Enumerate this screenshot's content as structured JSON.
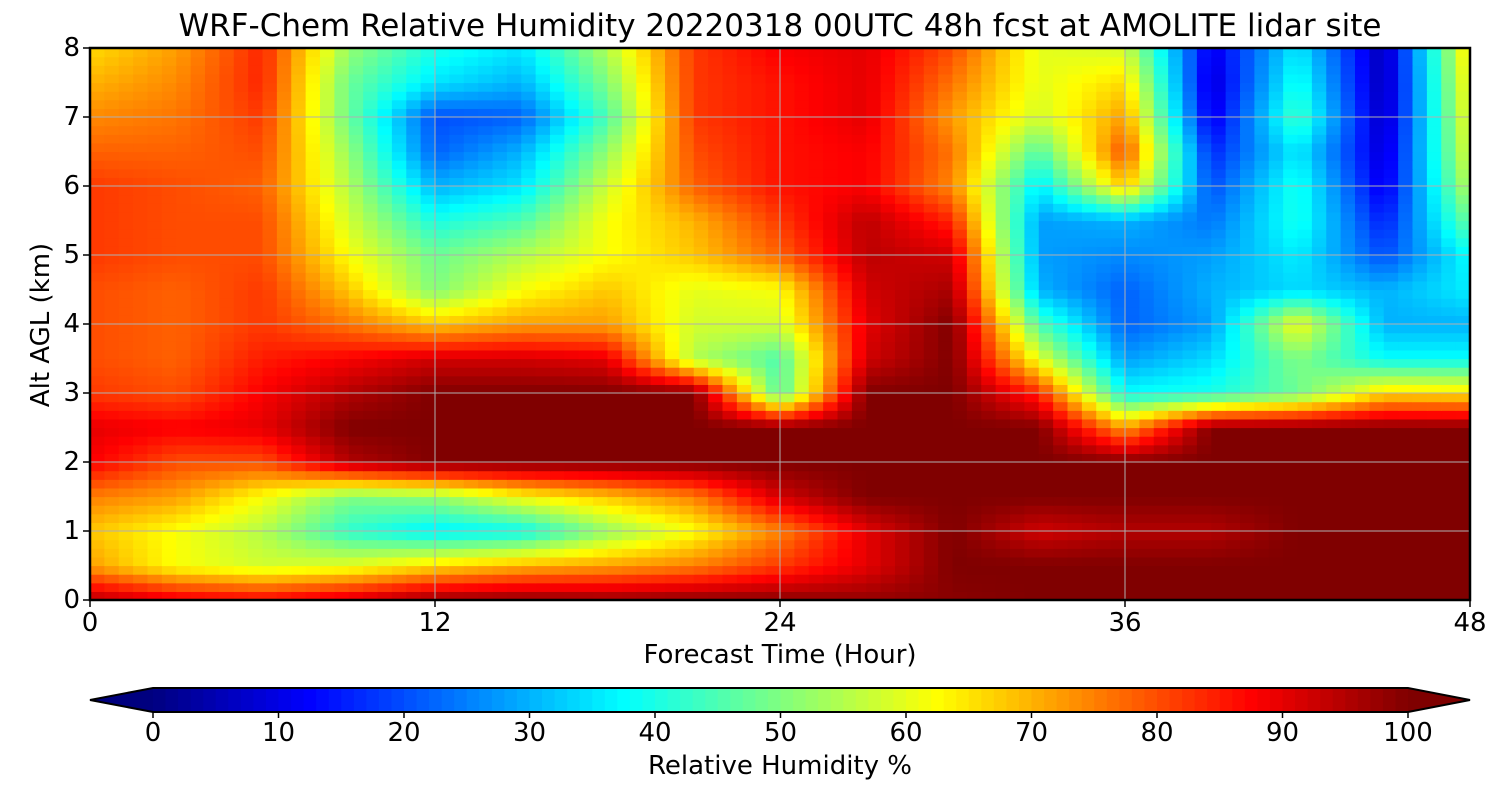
{
  "chart_data": {
    "type": "heatmap",
    "title": "WRF-Chem Relative Humidity 20220318 00UTC 48h fcst at AMOLITE lidar site",
    "xlabel": "Forecast Time (Hour)",
    "ylabel": "Alt AGL (km)",
    "xlim": [
      0,
      48
    ],
    "ylim": [
      0,
      8
    ],
    "xticks": [
      "0",
      "12",
      "24",
      "36",
      "48"
    ],
    "yticks": [
      "0",
      "1",
      "2",
      "3",
      "4",
      "5",
      "6",
      "7",
      "8"
    ],
    "grid": true,
    "colormap": "jet",
    "colorbar": {
      "label": "Relative Humidity %",
      "range": [
        0,
        100
      ],
      "ticks": [
        "0",
        "10",
        "20",
        "30",
        "40",
        "50",
        "60",
        "70",
        "80",
        "90",
        "100"
      ],
      "extend": "both",
      "under_color": "#00007f",
      "over_color": "#7f0000"
    },
    "x": [
      0,
      3,
      6,
      9,
      12,
      15,
      18,
      21,
      24,
      27,
      30,
      33,
      36,
      39,
      42,
      45,
      48
    ],
    "y": [
      0,
      0.5,
      1,
      1.5,
      2,
      2.5,
      3,
      3.5,
      4,
      4.5,
      5,
      5.5,
      6,
      6.5,
      7,
      7.5,
      8
    ],
    "z": [
      [
        95,
        90,
        88,
        92,
        98,
        99,
        98,
        99,
        99,
        98,
        99,
        100,
        100,
        100,
        100,
        100,
        100
      ],
      [
        72,
        62,
        58,
        60,
        66,
        70,
        72,
        75,
        82,
        90,
        100,
        100,
        100,
        100,
        100,
        100,
        100
      ],
      [
        68,
        62,
        55,
        42,
        36,
        38,
        52,
        62,
        75,
        90,
        100,
        92,
        95,
        95,
        100,
        100,
        100
      ],
      [
        75,
        72,
        62,
        50,
        52,
        62,
        68,
        75,
        92,
        100,
        100,
        100,
        100,
        100,
        100,
        100,
        100
      ],
      [
        88,
        80,
        80,
        95,
        100,
        100,
        100,
        100,
        100,
        100,
        100,
        100,
        100,
        100,
        100,
        100,
        100
      ],
      [
        90,
        88,
        90,
        100,
        100,
        100,
        100,
        100,
        100,
        100,
        100,
        100,
        72,
        100,
        100,
        100,
        100
      ],
      [
        82,
        80,
        88,
        95,
        100,
        100,
        100,
        100,
        45,
        100,
        100,
        84,
        38,
        40,
        48,
        66,
        65
      ],
      [
        80,
        78,
        85,
        88,
        92,
        92,
        90,
        55,
        45,
        92,
        100,
        60,
        28,
        34,
        50,
        38,
        38
      ],
      [
        80,
        78,
        82,
        76,
        68,
        72,
        72,
        58,
        58,
        90,
        100,
        45,
        22,
        28,
        62,
        30,
        30
      ],
      [
        80,
        78,
        82,
        68,
        50,
        62,
        68,
        60,
        62,
        92,
        96,
        30,
        22,
        30,
        34,
        30,
        36
      ],
      [
        82,
        80,
        80,
        62,
        48,
        55,
        62,
        68,
        78,
        94,
        92,
        28,
        26,
        28,
        36,
        20,
        38
      ],
      [
        82,
        80,
        80,
        58,
        40,
        45,
        62,
        70,
        82,
        94,
        84,
        28,
        30,
        24,
        40,
        15,
        48
      ],
      [
        82,
        80,
        78,
        55,
        30,
        35,
        58,
        78,
        86,
        88,
        74,
        35,
        68,
        20,
        40,
        10,
        56
      ],
      [
        78,
        78,
        80,
        52,
        22,
        30,
        52,
        80,
        86,
        88,
        76,
        45,
        80,
        16,
        36,
        8,
        60
      ],
      [
        74,
        76,
        82,
        48,
        20,
        22,
        45,
        82,
        86,
        90,
        72,
        58,
        72,
        10,
        44,
        6,
        62
      ],
      [
        70,
        74,
        84,
        48,
        35,
        30,
        50,
        82,
        86,
        90,
        76,
        60,
        66,
        8,
        40,
        5,
        64
      ],
      [
        66,
        72,
        84,
        52,
        40,
        35,
        55,
        82,
        88,
        90,
        80,
        60,
        58,
        10,
        36,
        5,
        66
      ]
    ]
  }
}
